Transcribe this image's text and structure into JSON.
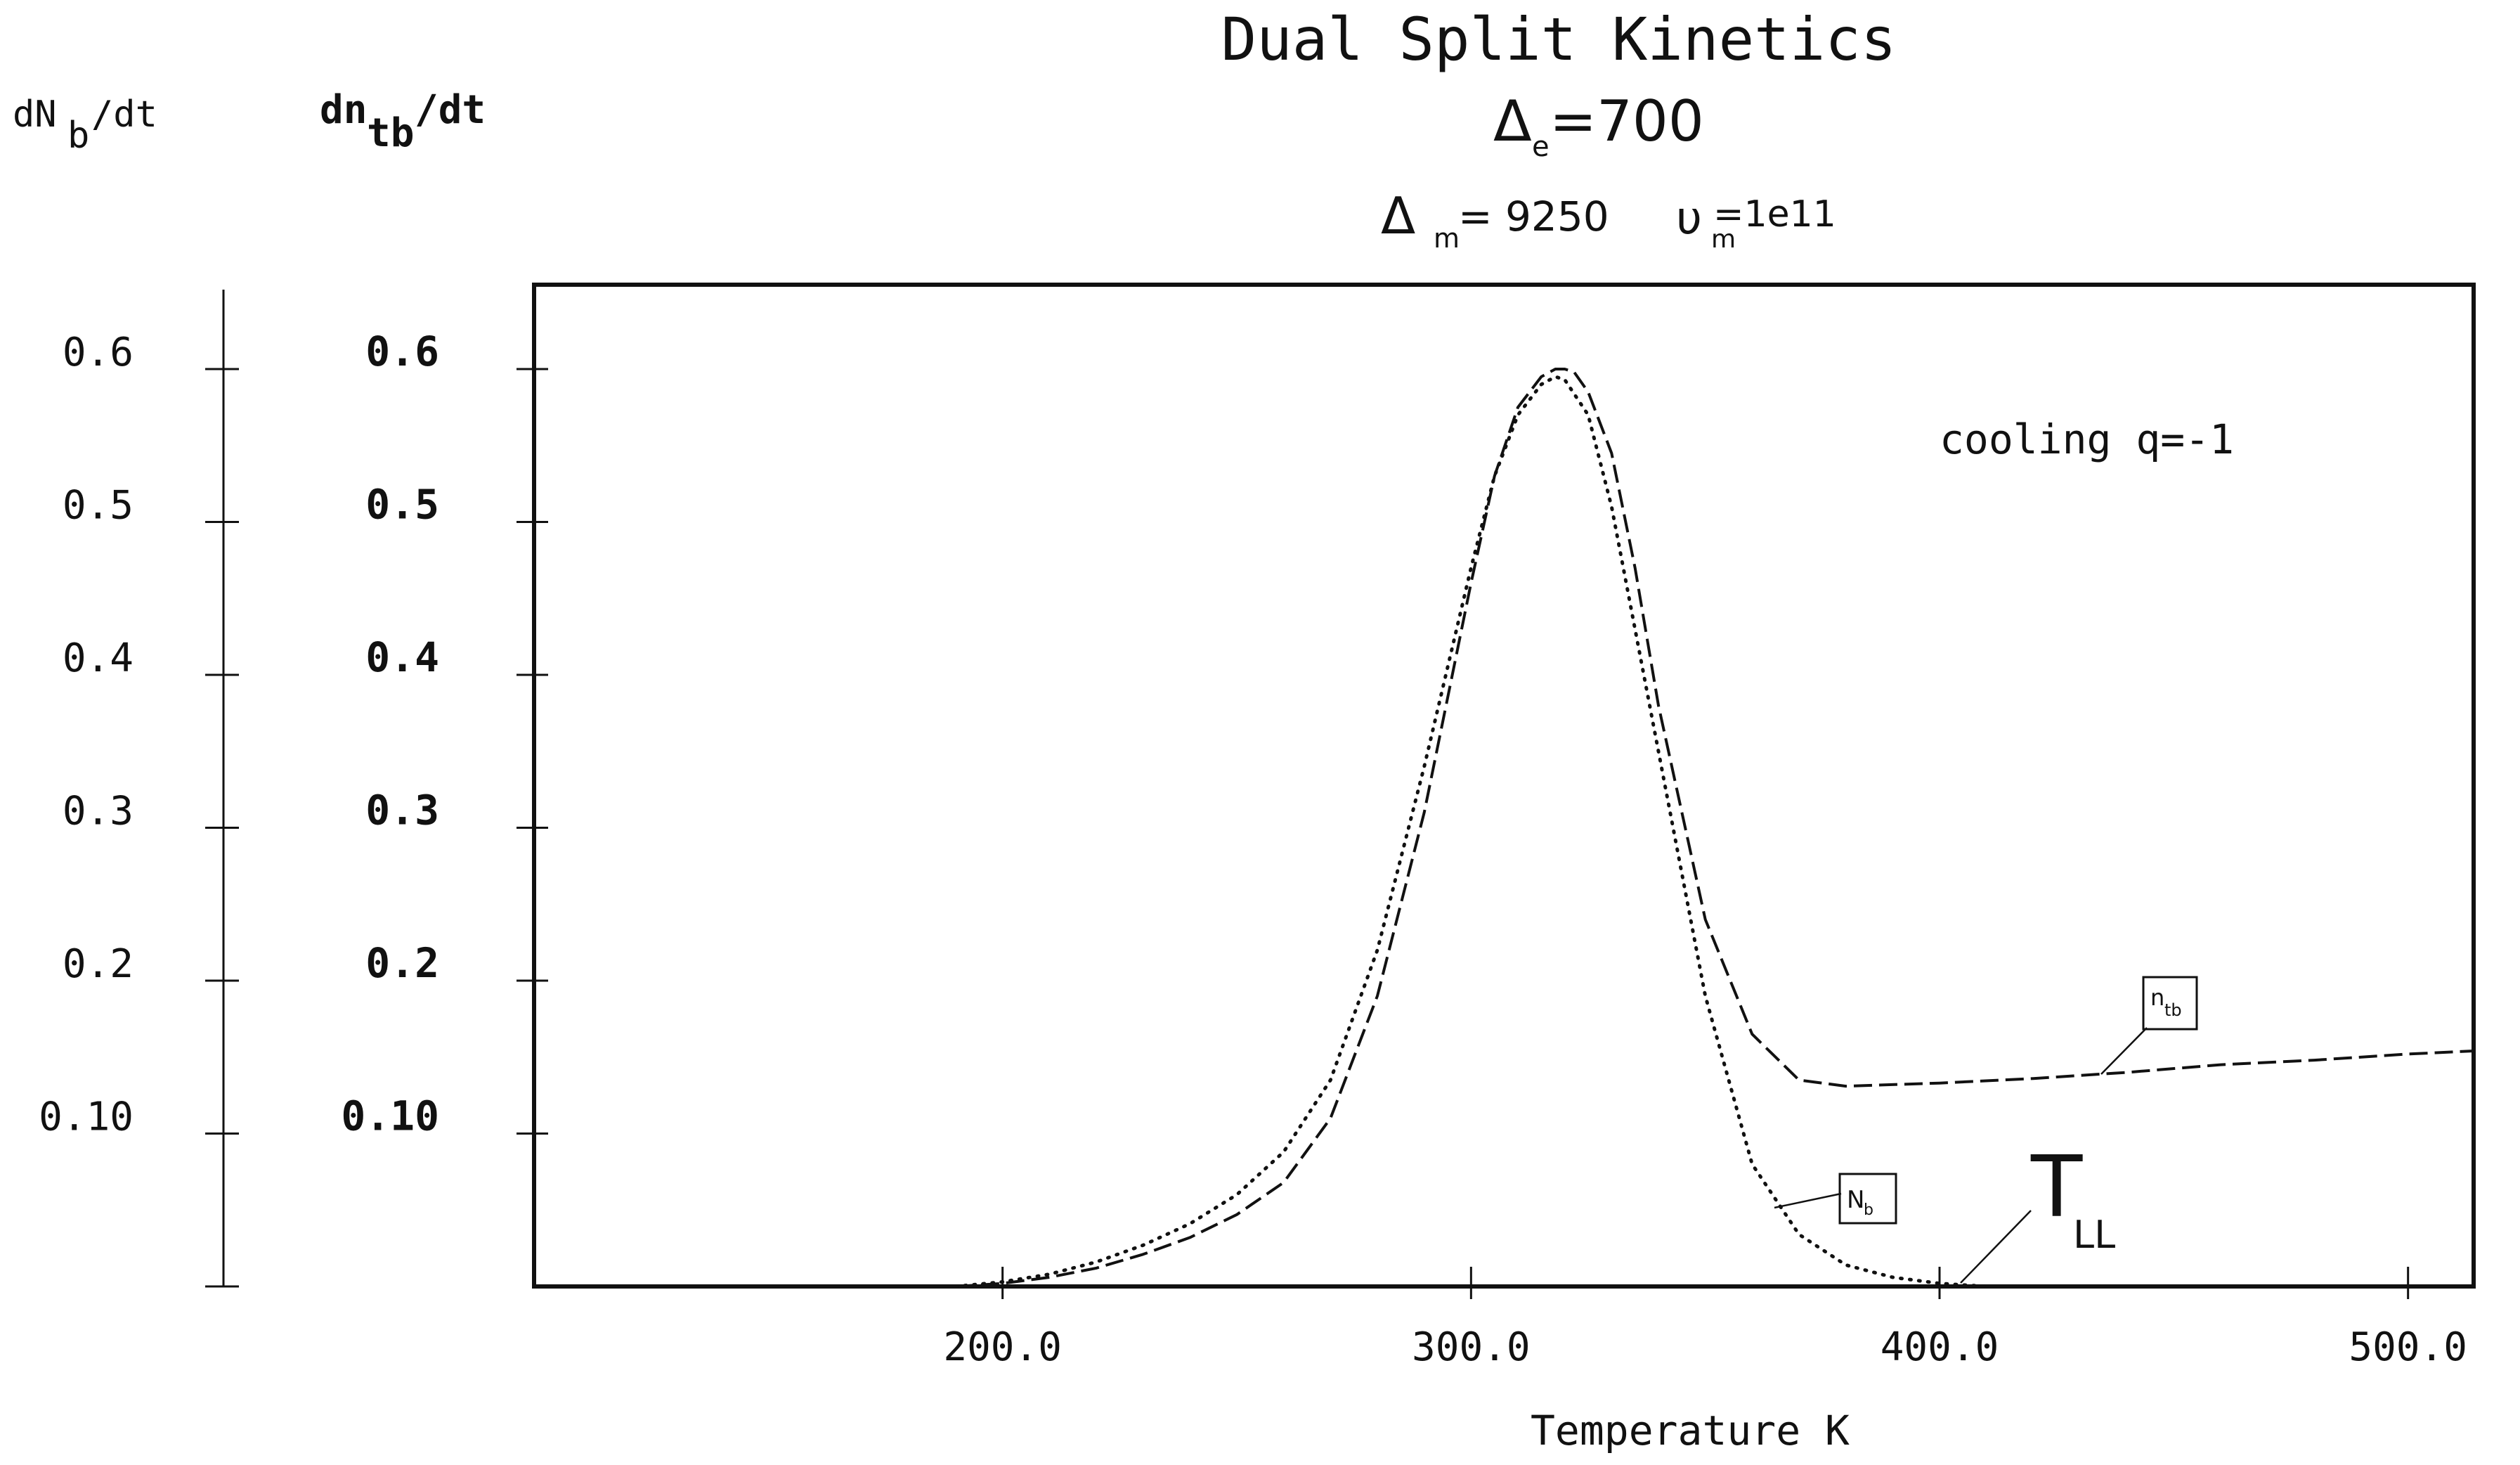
{
  "chart_data": {
    "type": "line",
    "title": "Dual Split Kinetics",
    "subtitle": {
      "delta_e": {
        "symbol": "Δ",
        "sub": "e",
        "value": "=700"
      },
      "delta_m": {
        "symbol": "Δ",
        "sub": "m",
        "value": "= 9250"
      },
      "nu_m": {
        "symbol": "υ",
        "sub": "m",
        "value": "=1e11"
      }
    },
    "xlabel": "Temperature K",
    "xlim": [
      100,
      514
    ],
    "x_ticks": [
      {
        "value": 200,
        "label": "200.0"
      },
      {
        "value": 300,
        "label": "300.0"
      },
      {
        "value": 400,
        "label": "400.0"
      },
      {
        "value": 500,
        "label": "500.0"
      }
    ],
    "ylim": [
      0,
      0.6
    ],
    "y_axes": [
      {
        "label_main": "dN",
        "label_sub": "b",
        "label_tail": "/dt",
        "tick_labels": [
          "0.6",
          "0.5",
          "0.4",
          "0.3",
          "0.2",
          "0.10"
        ]
      },
      {
        "label_main": "dn",
        "label_sub": "tb",
        "label_tail": "/dt",
        "tick_labels": [
          "0.6",
          "0.5",
          "0.4",
          "0.3",
          "0.2",
          "0.10"
        ]
      }
    ],
    "y_tick_values": [
      0.6,
      0.5,
      0.4,
      0.3,
      0.2,
      0.1
    ],
    "annotation": "cooling q=-1",
    "series": [
      {
        "name": "n",
        "name_sub": "tb",
        "style": "dashed",
        "x": [
          190,
          200,
          210,
          220,
          230,
          240,
          250,
          260,
          270,
          280,
          290,
          300,
          305,
          310,
          315,
          318,
          320,
          322,
          325,
          330,
          335,
          340,
          350,
          360,
          370,
          380,
          400,
          420,
          440,
          460,
          480,
          500,
          514
        ],
        "y": [
          0.0,
          0.002,
          0.006,
          0.012,
          0.021,
          0.032,
          0.047,
          0.068,
          0.11,
          0.19,
          0.31,
          0.46,
          0.53,
          0.575,
          0.595,
          0.6,
          0.6,
          0.598,
          0.585,
          0.545,
          0.47,
          0.38,
          0.24,
          0.165,
          0.135,
          0.131,
          0.133,
          0.136,
          0.14,
          0.145,
          0.148,
          0.152,
          0.154
        ]
      },
      {
        "name": "N",
        "name_sub": "b",
        "style": "dotted",
        "x": [
          190,
          200,
          210,
          220,
          230,
          240,
          250,
          260,
          270,
          280,
          290,
          300,
          305,
          310,
          315,
          318,
          320,
          325,
          330,
          340,
          350,
          360,
          370,
          380,
          390,
          400,
          410
        ],
        "y": [
          0.0,
          0.003,
          0.008,
          0.016,
          0.027,
          0.041,
          0.06,
          0.088,
          0.135,
          0.22,
          0.34,
          0.47,
          0.53,
          0.57,
          0.59,
          0.595,
          0.593,
          0.57,
          0.51,
          0.35,
          0.19,
          0.08,
          0.034,
          0.014,
          0.006,
          0.002,
          0.0
        ]
      }
    ],
    "marker": {
      "main": "T",
      "sub": "LL",
      "x": 400
    }
  }
}
